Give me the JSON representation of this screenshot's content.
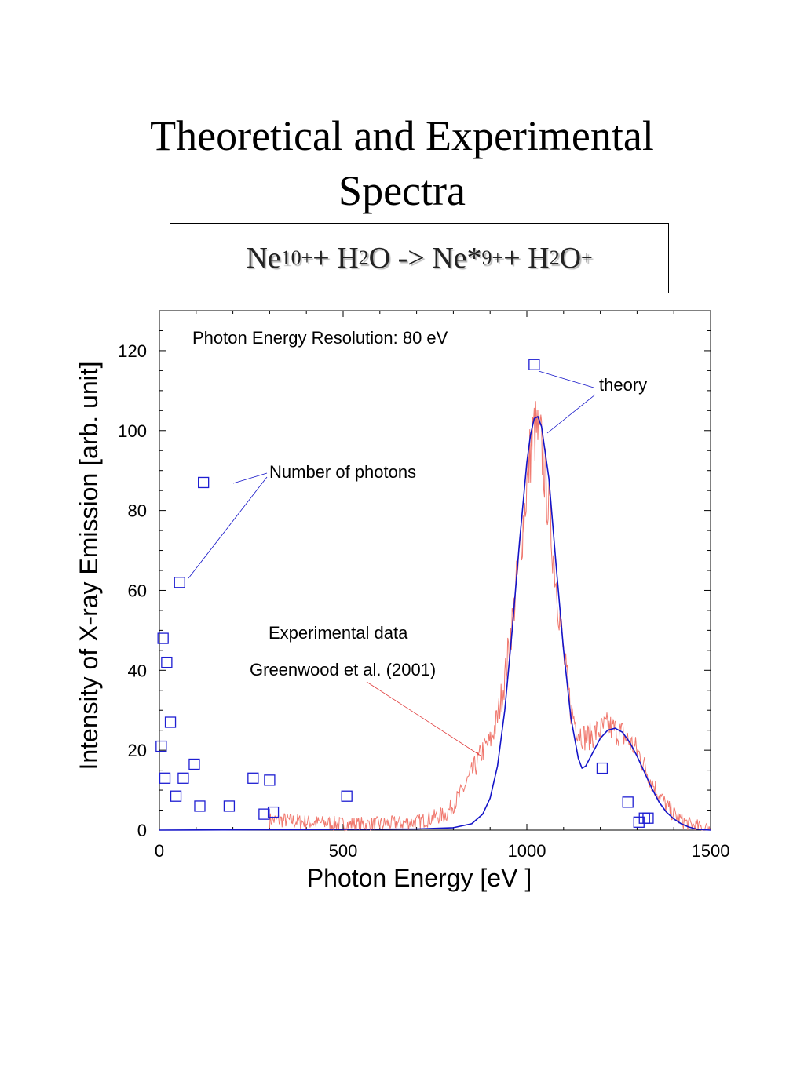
{
  "title": {
    "line1": "Theoretical and Experimental",
    "line2": "Spectra"
  },
  "reaction": {
    "parts": [
      {
        "t": "Ne",
        "s": "normal"
      },
      {
        "t": "10+",
        "s": "sup"
      },
      {
        "t": " + H",
        "s": "normal"
      },
      {
        "t": "2",
        "s": "sub"
      },
      {
        "t": "O -> Ne*",
        "s": "normal"
      },
      {
        "t": "9+",
        "s": "sup"
      },
      {
        "t": " + H",
        "s": "normal"
      },
      {
        "t": "2",
        "s": "sub"
      },
      {
        "t": "O",
        "s": "normal"
      },
      {
        "t": "+",
        "s": "sup"
      }
    ]
  },
  "colors": {
    "theory": "#1414c8",
    "experimental": "#f0786e",
    "photons": "#1e1ed2",
    "photons_label": "#1a1ad2",
    "axis": "#000000"
  },
  "chart_data": {
    "type": "line",
    "xlabel": "Photon Energy  [eV ]",
    "ylabel": "Intensity of X-ray Emission  [arb. unit]",
    "xlim": [
      0,
      1500
    ],
    "ylim": [
      0,
      130
    ],
    "xticks": [
      0,
      500,
      1000,
      1500
    ],
    "yticks": [
      0,
      20,
      40,
      60,
      80,
      100,
      120
    ],
    "grid": false,
    "annotations": {
      "resolution": "Photon Energy Resolution: 80 eV",
      "theory": "theory",
      "photons": "Number of photons",
      "exp_line1": "Experimental data",
      "exp_line2": "Greenwood et al. (2001)"
    },
    "series": [
      {
        "key": "theory",
        "style": "line",
        "x": [
          0,
          300,
          500,
          700,
          800,
          850,
          880,
          900,
          920,
          940,
          960,
          980,
          1000,
          1010,
          1020,
          1030,
          1040,
          1060,
          1080,
          1100,
          1120,
          1140,
          1150,
          1160,
          1180,
          1200,
          1220,
          1240,
          1260,
          1280,
          1300,
          1320,
          1340,
          1360,
          1380,
          1400,
          1420,
          1440,
          1460,
          1480,
          1500
        ],
        "y": [
          0,
          0.1,
          0.2,
          0.3,
          0.6,
          1.6,
          4,
          8,
          16,
          30,
          50,
          72,
          92,
          99,
          103,
          103.5,
          101,
          88,
          66,
          45,
          28,
          18,
          15.5,
          16,
          19.5,
          23,
          25,
          25.5,
          24.5,
          22,
          18.5,
          14.5,
          10.5,
          7,
          4.5,
          2.8,
          1.6,
          0.8,
          0.3,
          0.1,
          0
        ]
      },
      {
        "key": "experimental",
        "style": "line",
        "x": [
          300,
          340,
          400,
          500,
          600,
          700,
          780,
          820,
          860,
          880,
          900,
          920,
          940,
          960,
          980,
          1000,
          1010,
          1020,
          1030,
          1040,
          1050,
          1060,
          1080,
          1100,
          1120,
          1140,
          1160,
          1180,
          1200,
          1220,
          1240,
          1260,
          1280,
          1300,
          1320,
          1340,
          1360,
          1380,
          1400,
          1420,
          1440,
          1460,
          1480,
          1500
        ],
        "y": [
          2.5,
          2.5,
          2,
          1.5,
          1.5,
          2,
          4,
          9,
          16,
          20,
          22,
          28,
          38,
          52,
          68,
          86,
          95,
          100,
          99,
          96,
          88,
          80,
          62,
          44,
          30,
          25,
          23,
          24,
          25,
          26,
          25,
          24,
          22,
          20,
          16,
          12,
          9,
          6,
          4,
          2.5,
          1.5,
          1,
          0.5,
          0.5
        ],
        "noise": 3
      },
      {
        "key": "photons",
        "style": "markers",
        "x": [
          5,
          10,
          15,
          20,
          30,
          45,
          55,
          65,
          95,
          110,
          120,
          190,
          255,
          285,
          300,
          310,
          510,
          1020,
          1205,
          1275,
          1305,
          1320,
          1330
        ],
        "y": [
          21,
          48,
          13,
          42,
          27,
          8.5,
          62,
          13,
          16.5,
          6,
          87,
          6,
          13,
          4,
          12.5,
          4.5,
          8.5,
          116.5,
          15.5,
          7,
          2,
          3,
          3
        ]
      }
    ]
  }
}
